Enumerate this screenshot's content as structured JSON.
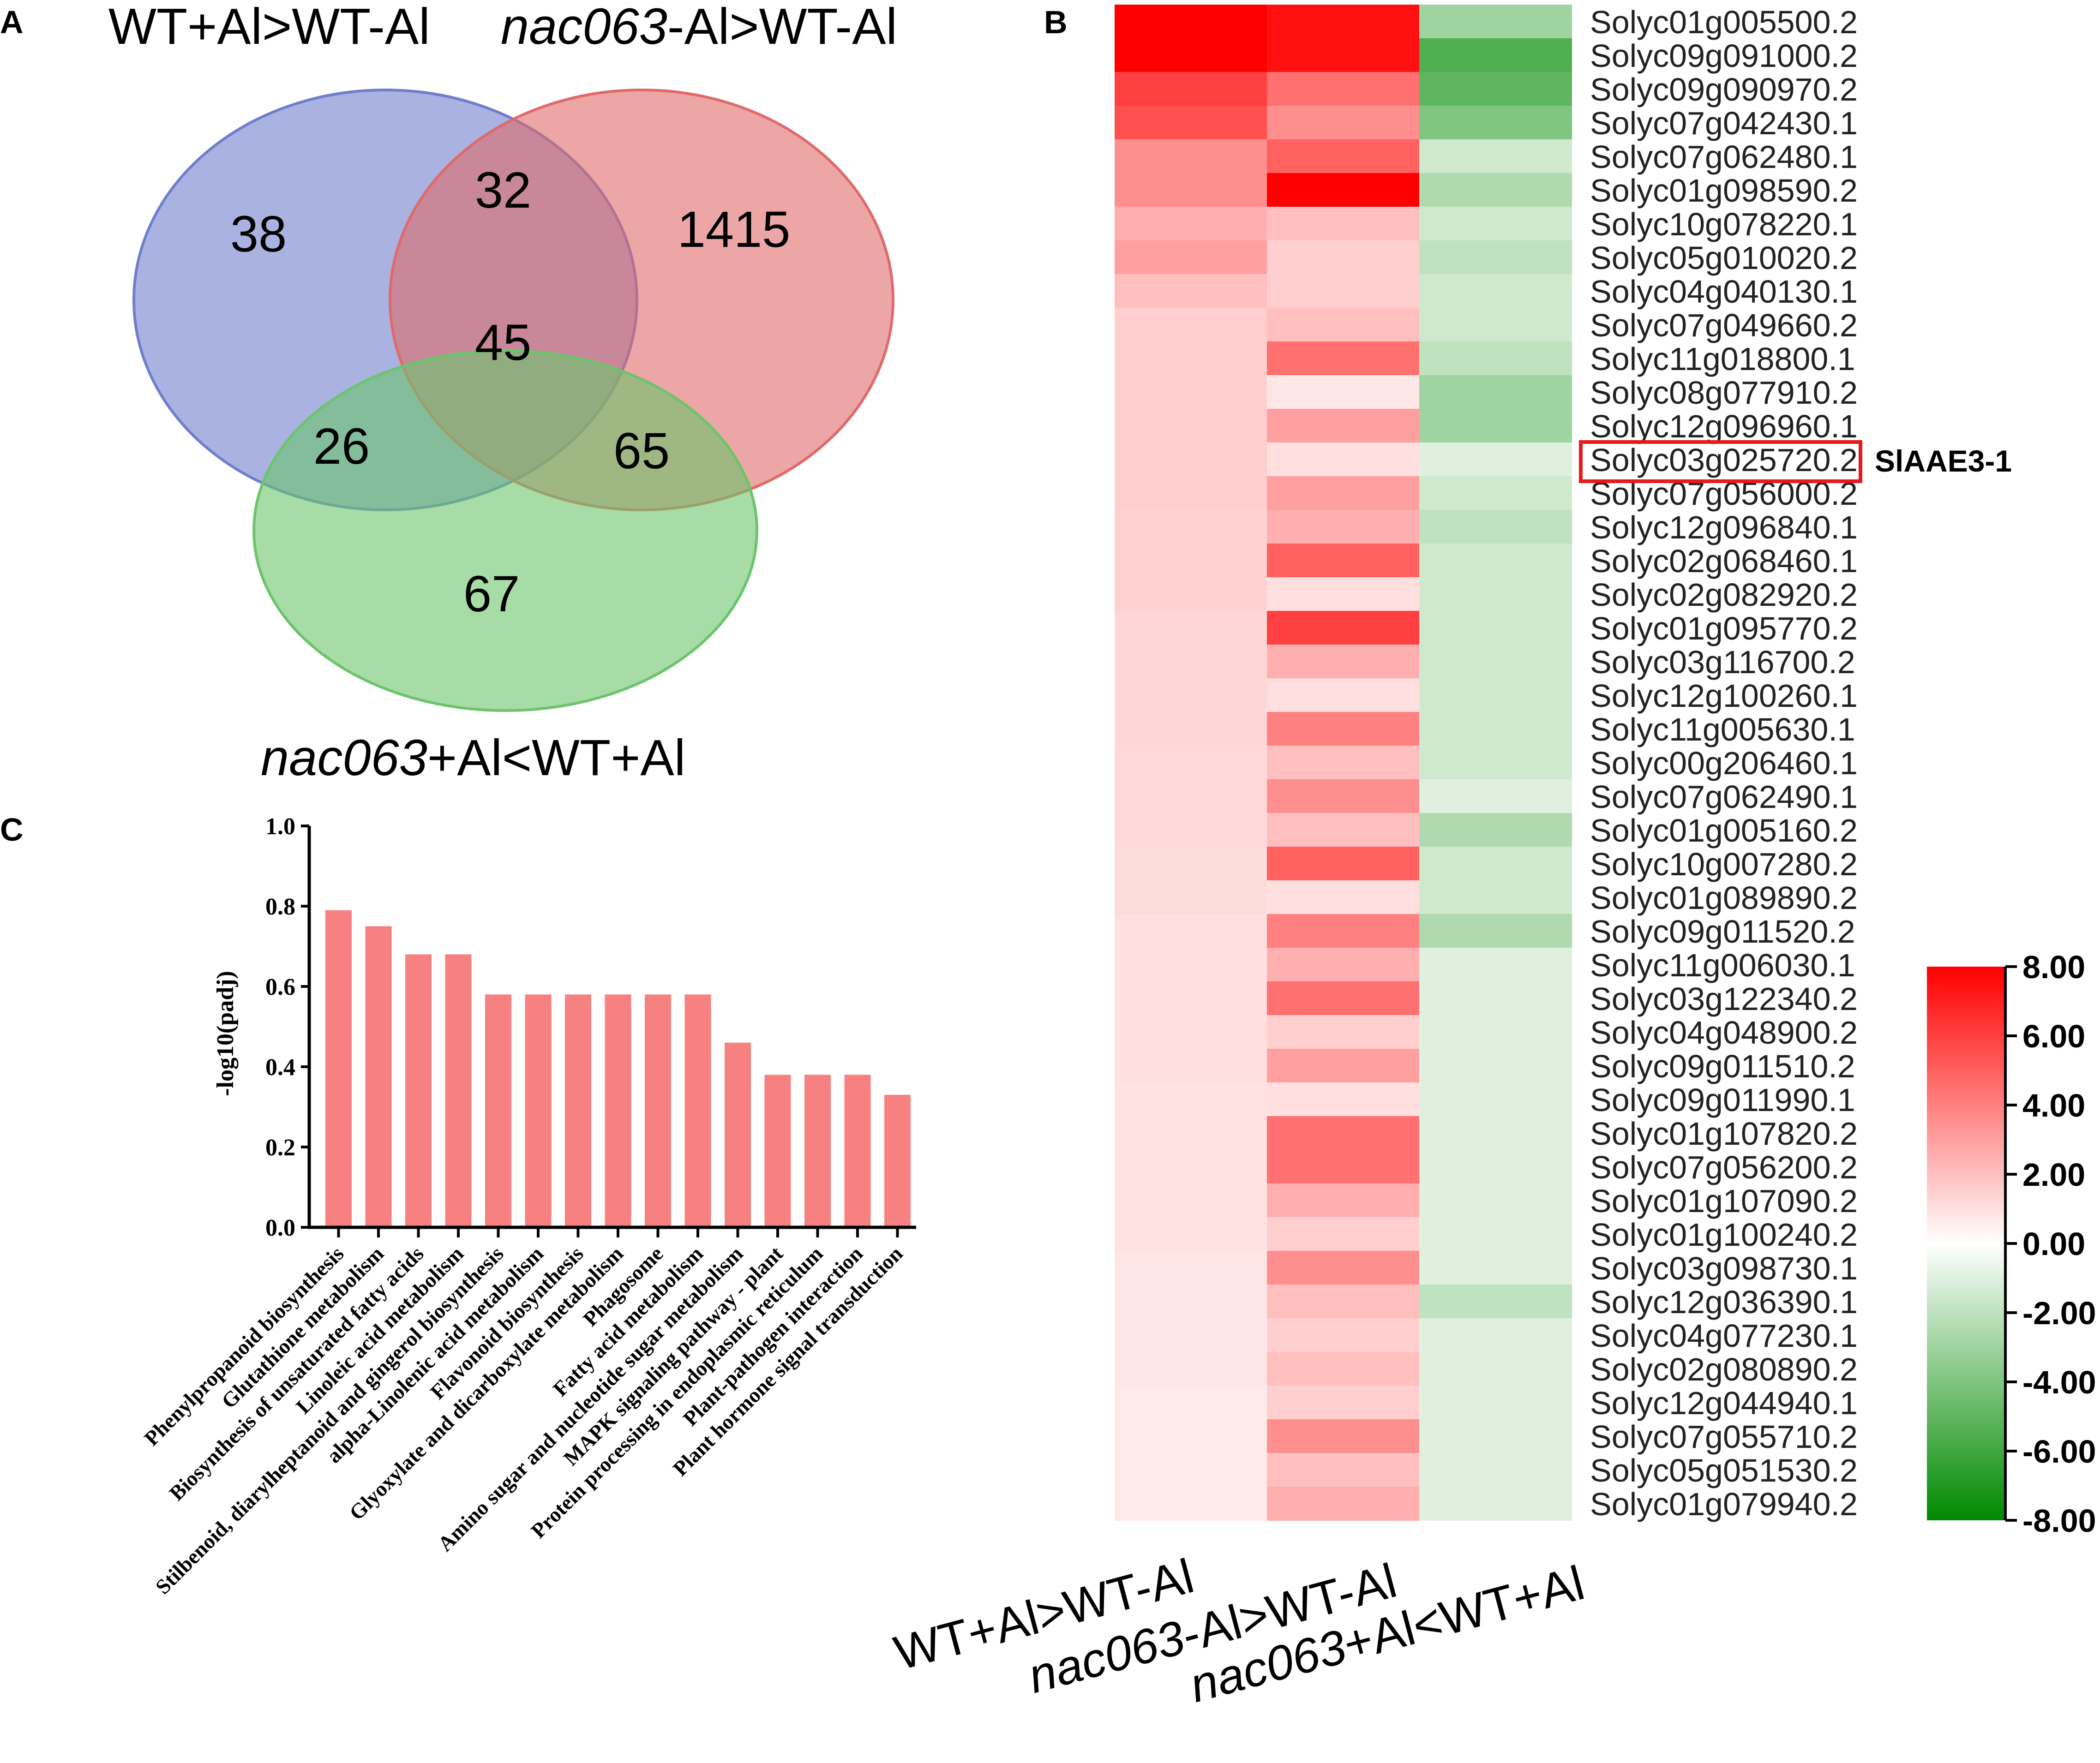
{
  "panels": {
    "a": "A",
    "b": "B",
    "c": "C"
  },
  "venn": {
    "sets": [
      {
        "name": "WT+Al>WT-Al",
        "name_italic": "",
        "name_rest": "WT+Al>WT-Al",
        "color": "#6f7fcc"
      },
      {
        "name": "nac063-Al>WT-Al",
        "name_italic": "nac063",
        "name_rest": "-Al>WT-Al",
        "color": "#e06a6a"
      },
      {
        "name": "nac063+Al<WT+Al",
        "name_italic": "nac063",
        "name_rest": "+Al<WT+Al",
        "color": "#6cc46c"
      }
    ],
    "regions": {
      "only_1": "38",
      "only_2": "1415",
      "only_3": "67",
      "r12": "32",
      "r13": "26",
      "r23": "65",
      "r123": "45"
    }
  },
  "chart_data": [
    {
      "type": "heatmap",
      "title": "",
      "columns": [
        "WT+Al>WT-Al",
        "nac063-Al>WT-Al",
        "nac063+Al<WT+Al"
      ],
      "rows": [
        "Solyc01g005500.2",
        "Solyc09g091000.2",
        "Solyc09g090970.2",
        "Solyc07g042430.1",
        "Solyc07g062480.1",
        "Solyc01g098590.2",
        "Solyc10g078220.1",
        "Solyc05g010020.2",
        "Solyc04g040130.1",
        "Solyc07g049660.2",
        "Solyc11g018800.1",
        "Solyc08g077910.2",
        "Solyc12g096960.1",
        "Solyc03g025720.2",
        "Solyc07g056000.2",
        "Solyc12g096840.1",
        "Solyc02g068460.1",
        "Solyc02g082920.2",
        "Solyc01g095770.2",
        "Solyc03g116700.2",
        "Solyc12g100260.1",
        "Solyc11g005630.1",
        "Solyc00g206460.1",
        "Solyc07g062490.1",
        "Solyc01g005160.2",
        "Solyc10g007280.2",
        "Solyc01g089890.2",
        "Solyc09g011520.2",
        "Solyc11g006030.1",
        "Solyc03g122340.2",
        "Solyc04g048900.2",
        "Solyc09g011510.2",
        "Solyc09g011990.1",
        "Solyc01g107820.2",
        "Solyc07g056200.2",
        "Solyc01g107090.2",
        "Solyc01g100240.2",
        "Solyc03g098730.1",
        "Solyc12g036390.1",
        "Solyc04g077230.1",
        "Solyc02g080890.2",
        "Solyc12g044940.1",
        "Solyc07g055710.2",
        "Solyc05g051530.2",
        "Solyc01g079940.2"
      ],
      "values": [
        [
          8.0,
          7.5,
          -3.0
        ],
        [
          8.0,
          7.5,
          -5.5
        ],
        [
          6.0,
          4.5,
          -5.0
        ],
        [
          5.5,
          3.5,
          -4.0
        ],
        [
          3.5,
          5.0,
          -1.5
        ],
        [
          3.5,
          8.0,
          -2.5
        ],
        [
          2.5,
          2.0,
          -1.5
        ],
        [
          3.0,
          1.5,
          -2.0
        ],
        [
          2.0,
          1.5,
          -1.5
        ],
        [
          1.5,
          2.0,
          -1.5
        ],
        [
          1.5,
          4.5,
          -2.0
        ],
        [
          1.5,
          0.8,
          -3.0
        ],
        [
          1.5,
          3.0,
          -3.0
        ],
        [
          1.5,
          1.0,
          -1.0
        ],
        [
          1.5,
          3.0,
          -1.5
        ],
        [
          1.4,
          2.5,
          -2.0
        ],
        [
          1.4,
          5.0,
          -1.5
        ],
        [
          1.4,
          1.0,
          -1.5
        ],
        [
          1.3,
          6.0,
          -1.5
        ],
        [
          1.3,
          2.5,
          -1.5
        ],
        [
          1.3,
          1.0,
          -1.5
        ],
        [
          1.3,
          4.0,
          -1.5
        ],
        [
          1.2,
          2.0,
          -1.5
        ],
        [
          1.2,
          3.5,
          -1.0
        ],
        [
          1.2,
          2.0,
          -2.5
        ],
        [
          1.1,
          5.0,
          -1.5
        ],
        [
          1.1,
          1.0,
          -1.5
        ],
        [
          1.0,
          4.0,
          -2.5
        ],
        [
          1.0,
          2.5,
          -1.0
        ],
        [
          1.0,
          4.5,
          -1.0
        ],
        [
          1.0,
          1.5,
          -1.0
        ],
        [
          1.0,
          3.0,
          -1.0
        ],
        [
          0.9,
          1.0,
          -1.0
        ],
        [
          0.9,
          4.5,
          -1.0
        ],
        [
          0.9,
          4.5,
          -1.0
        ],
        [
          0.9,
          2.5,
          -1.0
        ],
        [
          0.9,
          1.5,
          -1.0
        ],
        [
          0.8,
          3.5,
          -1.0
        ],
        [
          0.8,
          2.0,
          -2.0
        ],
        [
          0.8,
          1.5,
          -1.0
        ],
        [
          0.8,
          2.0,
          -1.0
        ],
        [
          0.7,
          1.5,
          -1.0
        ],
        [
          0.7,
          3.5,
          -1.0
        ],
        [
          0.7,
          2.0,
          -1.0
        ],
        [
          0.7,
          2.5,
          -1.0
        ]
      ],
      "highlight": {
        "gene": "Solyc03g025720.2",
        "label": "SlAAE3-1"
      },
      "colorbar": {
        "min": -8,
        "max": 8,
        "ticks": [
          "8.00",
          "6.00",
          "4.00",
          "2.00",
          "0.00",
          "-2.00",
          "-4.00",
          "-6.00",
          "-8.00"
        ],
        "low_color": "#008a00",
        "mid_color": "#ffffff",
        "high_color": "#ff0000"
      },
      "xlabels": [
        {
          "italic": "",
          "rest": "WT+Al>WT-Al"
        },
        {
          "italic": "nac063",
          "rest": "-Al>WT-Al"
        },
        {
          "italic": "nac063",
          "rest": "+Al<WT+Al"
        }
      ]
    },
    {
      "type": "bar",
      "title": "",
      "xlabel": "",
      "ylabel": "-log10(padj)",
      "ylim": [
        0,
        1.0
      ],
      "yticks": [
        "0.0",
        "0.2",
        "0.4",
        "0.6",
        "0.8",
        "1.0"
      ],
      "bar_color": "#f78080",
      "categories": [
        "Phenylpropanoid biosynthesis",
        "Glutathione metabolism",
        "Biosynthesis of unsaturated fatty acids",
        "Linoleic acid metabolism",
        "Stilbenoid, diarylheptanoid and gingerol biosynthesis",
        "alpha-Linolenic acid metabolism",
        "Flavonoid biosynthesis",
        "Glyoxylate and dicarboxylate metabolism",
        "Phagosome",
        "Fatty acid metabolism",
        "Amino sugar and nucleotide sugar metabolism",
        "MAPK signaling pathway - plant",
        "Protein processing in endoplasmic reticulum",
        "Plant-pathogen interaction",
        "Plant hormone signal transduction"
      ],
      "values": [
        0.79,
        0.75,
        0.68,
        0.68,
        0.58,
        0.58,
        0.58,
        0.58,
        0.58,
        0.58,
        0.46,
        0.38,
        0.38,
        0.38,
        0.33
      ]
    }
  ]
}
